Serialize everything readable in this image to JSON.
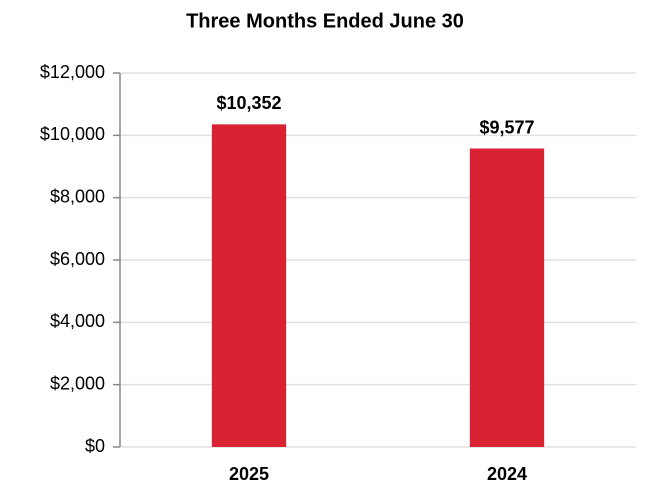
{
  "chart_data": {
    "type": "bar",
    "title": "Three Months Ended June 30",
    "categories": [
      "2025",
      "2024"
    ],
    "values": [
      10352,
      9577
    ],
    "value_labels": [
      "$10,352",
      "$9,577"
    ],
    "color": "#d92231",
    "ylim": [
      0,
      12000
    ],
    "yticks": [
      {
        "value": 0,
        "label": "$0"
      },
      {
        "value": 2000,
        "label": "$2,000"
      },
      {
        "value": 4000,
        "label": "$4,000"
      },
      {
        "value": 6000,
        "label": "$6,000"
      },
      {
        "value": 8000,
        "label": "$8,000"
      },
      {
        "value": 10000,
        "label": "$10,000"
      },
      {
        "value": 12000,
        "label": "$12,000"
      }
    ],
    "grid": true
  }
}
